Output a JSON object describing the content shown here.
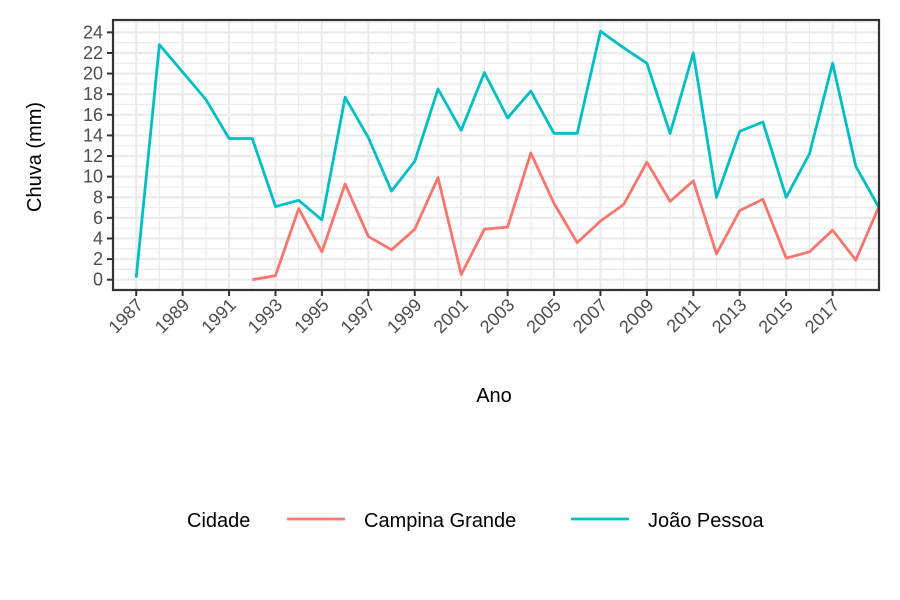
{
  "chart_data": {
    "type": "line",
    "xlabel": "Ano",
    "ylabel": "Chuva (mm)",
    "xlim": [
      1986,
      2019
    ],
    "ylim": [
      -1,
      25.2
    ],
    "x_tick_labels": [
      "1987",
      "1989",
      "1991",
      "1993",
      "1995",
      "1997",
      "1999",
      "2001",
      "2003",
      "2005",
      "2007",
      "2009",
      "2011",
      "2013",
      "2015",
      "2017"
    ],
    "y_tick_labels": [
      "0",
      "2",
      "4",
      "6",
      "8",
      "10",
      "12",
      "14",
      "16",
      "18",
      "20",
      "22",
      "24"
    ],
    "grid": true,
    "legend": {
      "title": "Cidade",
      "position": "bottom"
    },
    "series": [
      {
        "name": "Campina Grande",
        "color": "#F8766D",
        "points": [
          [
            1992,
            0.0
          ],
          [
            1993,
            0.4
          ],
          [
            1994,
            6.9
          ],
          [
            1995,
            2.7
          ],
          [
            1996,
            9.3
          ],
          [
            1997,
            4.2
          ],
          [
            1998,
            2.9
          ],
          [
            1999,
            4.9
          ],
          [
            2000,
            9.9
          ],
          [
            2001,
            0.5
          ],
          [
            2002,
            4.9
          ],
          [
            2003,
            5.1
          ],
          [
            2004,
            12.3
          ],
          [
            2005,
            7.4
          ],
          [
            2006,
            3.6
          ],
          [
            2007,
            5.7
          ],
          [
            2008,
            7.3
          ],
          [
            2009,
            11.4
          ],
          [
            2010,
            7.6
          ],
          [
            2011,
            9.6
          ],
          [
            2012,
            2.5
          ],
          [
            2013,
            6.7
          ],
          [
            2014,
            7.8
          ],
          [
            2015,
            2.1
          ],
          [
            2016,
            2.7
          ],
          [
            2017,
            4.8
          ],
          [
            2018,
            1.9
          ],
          [
            2019,
            7.1
          ]
        ]
      },
      {
        "name": "João Pessoa",
        "color": "#00BFC4",
        "points": [
          [
            1987,
            0.2
          ],
          [
            1988,
            22.8
          ],
          [
            1990,
            17.5
          ],
          [
            1991,
            13.7
          ],
          [
            1992,
            13.7
          ],
          [
            1993,
            7.1
          ],
          [
            1994,
            7.7
          ],
          [
            1995,
            5.8
          ],
          [
            1996,
            17.7
          ],
          [
            1997,
            13.8
          ],
          [
            1998,
            8.6
          ],
          [
            1999,
            11.5
          ],
          [
            2000,
            18.5
          ],
          [
            2001,
            14.5
          ],
          [
            2002,
            20.1
          ],
          [
            2003,
            15.7
          ],
          [
            2004,
            18.3
          ],
          [
            2005,
            14.2
          ],
          [
            2006,
            14.2
          ],
          [
            2007,
            24.1
          ],
          [
            2008,
            22.5
          ],
          [
            2009,
            21.0
          ],
          [
            2010,
            14.2
          ],
          [
            2011,
            22.0
          ],
          [
            2012,
            8.0
          ],
          [
            2013,
            14.4
          ],
          [
            2014,
            15.3
          ],
          [
            2015,
            8.0
          ],
          [
            2016,
            12.2
          ],
          [
            2017,
            21.0
          ],
          [
            2018,
            11.0
          ],
          [
            2019,
            7.0
          ]
        ]
      }
    ]
  }
}
